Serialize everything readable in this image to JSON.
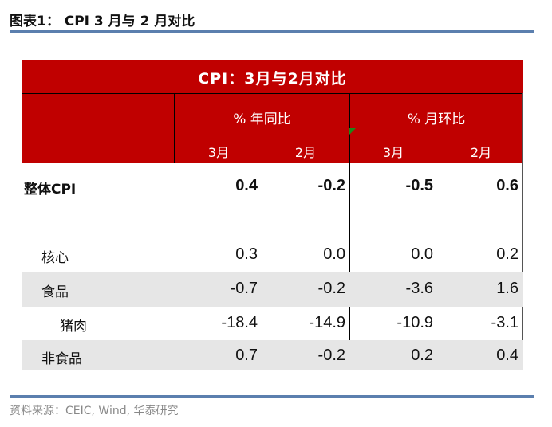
{
  "figure_title": "图表1：  CPI 3 月与 2 月对比",
  "table": {
    "title": "CPI：3月与2月对比",
    "group_headers": [
      "% 年同比",
      "% 月环比"
    ],
    "sub_headers": [
      "3月",
      "2月",
      "3月",
      "2月"
    ],
    "rows": [
      {
        "label": "整体CPI",
        "values": [
          "0.4",
          "-0.2",
          "-0.5",
          "0.6"
        ]
      },
      {
        "label": "核心",
        "values": [
          "0.3",
          "0.0",
          "0.0",
          "0.2"
        ]
      },
      {
        "label": "食品",
        "values": [
          "-0.7",
          "-0.2",
          "-3.6",
          "1.6"
        ]
      },
      {
        "label": "猪肉",
        "values": [
          "-18.4",
          "-14.9",
          "-10.9",
          "-3.1"
        ]
      },
      {
        "label": "非食品",
        "values": [
          "0.7",
          "-0.2",
          "0.2",
          "0.4"
        ]
      }
    ]
  },
  "source": "资料来源：CEIC, Wind,  华泰研究",
  "colors": {
    "header_bg": "#c00000",
    "stripe": "#e6e6e6",
    "rule": "#5b7fae"
  }
}
